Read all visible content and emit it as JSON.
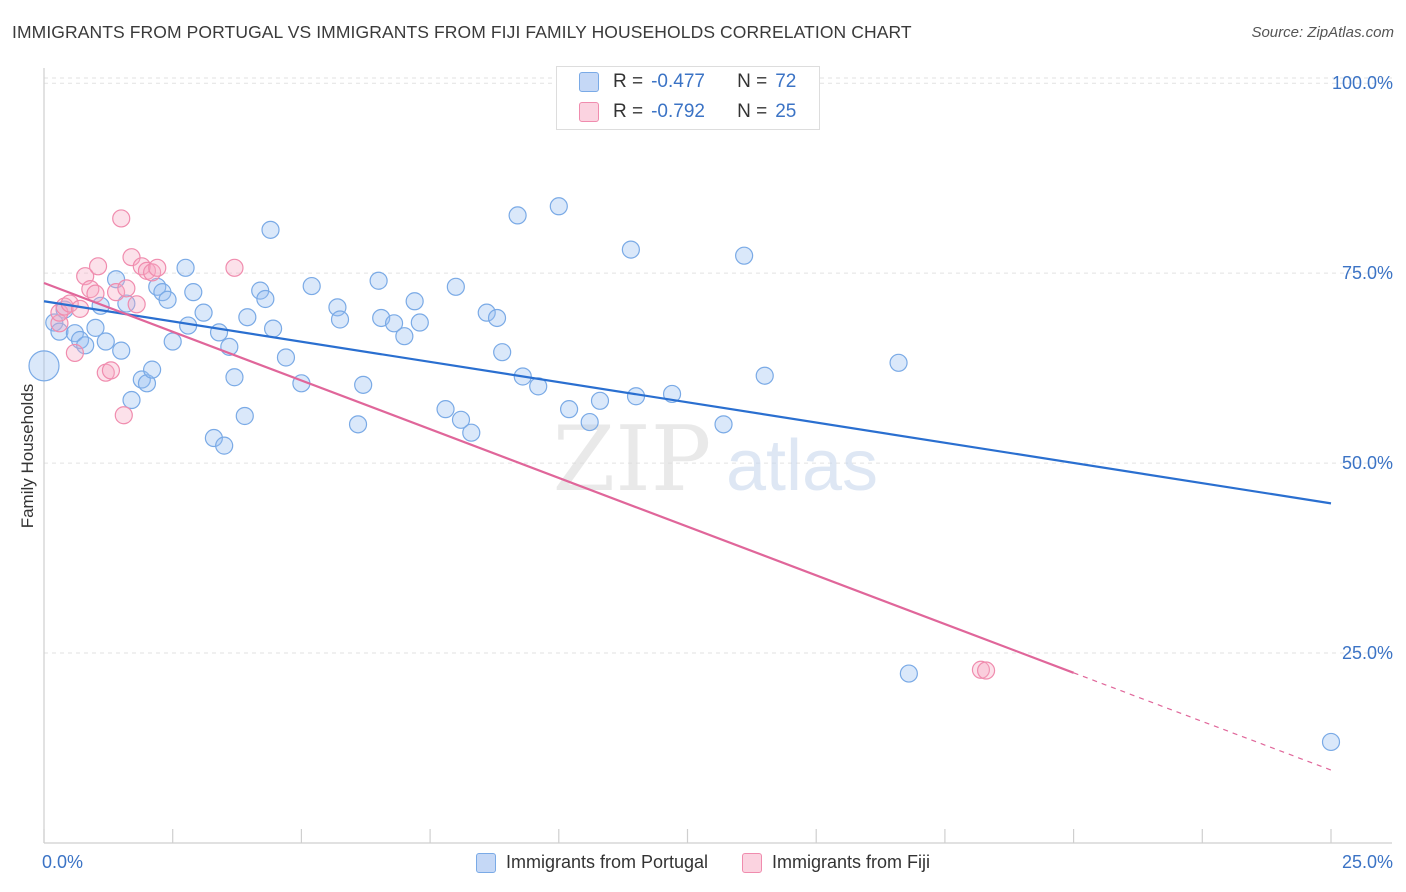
{
  "title": "IMMIGRANTS FROM PORTUGAL VS IMMIGRANTS FROM FIJI FAMILY HOUSEHOLDS CORRELATION CHART",
  "source": "Source: ZipAtlas.com",
  "watermark": {
    "zip": "ZIP",
    "atlas": "atlas"
  },
  "colors": {
    "portugal": "#7aaae6",
    "portugal_line": "#2a6fd0",
    "fiji": "#f08cae",
    "fiji_line": "#e0669a",
    "tick_text": "#3b73c5"
  },
  "legend_box": [
    {
      "r_label": "R =",
      "r_value": "-0.477",
      "n_label": "N =",
      "n_value": "72"
    },
    {
      "r_label": "R =",
      "r_value": "-0.792",
      "n_label": "N =",
      "n_value": "25"
    }
  ],
  "chart_data": {
    "type": "scatter",
    "title": "IMMIGRANTS FROM PORTUGAL VS IMMIGRANTS FROM FIJI FAMILY HOUSEHOLDS CORRELATION CHART",
    "xlabel": "",
    "ylabel": "Family Households",
    "xlim": [
      0,
      25
    ],
    "ylim": [
      0,
      102
    ],
    "x_tick_labels": [
      "0.0%",
      "25.0%"
    ],
    "y_ticks": [
      25,
      50,
      75,
      100
    ],
    "y_tick_labels": [
      "25.0%",
      "50.0%",
      "75.0%",
      "100.0%"
    ],
    "grid": true,
    "legend": "bottom-center",
    "series": [
      {
        "name": "Immigrants from Portugal",
        "r": -0.477,
        "n": 72,
        "trend": {
          "x": [
            0,
            25
          ],
          "y": [
            71.3,
            44.7
          ]
        },
        "points": [
          [
            0.0,
            62.8
          ],
          [
            0.2,
            68.5
          ],
          [
            0.3,
            67.3
          ],
          [
            0.4,
            70.2
          ],
          [
            0.6,
            67.1
          ],
          [
            0.7,
            66.2
          ],
          [
            0.8,
            65.5
          ],
          [
            1.0,
            67.8
          ],
          [
            1.1,
            70.7
          ],
          [
            1.2,
            66.0
          ],
          [
            1.4,
            74.2
          ],
          [
            1.5,
            64.8
          ],
          [
            1.6,
            71.0
          ],
          [
            1.7,
            58.3
          ],
          [
            1.9,
            61.0
          ],
          [
            2.0,
            60.5
          ],
          [
            2.1,
            62.3
          ],
          [
            2.2,
            73.2
          ],
          [
            2.3,
            72.5
          ],
          [
            2.4,
            71.5
          ],
          [
            2.5,
            66.0
          ],
          [
            2.75,
            75.7
          ],
          [
            2.8,
            68.1
          ],
          [
            2.9,
            72.5
          ],
          [
            3.1,
            69.8
          ],
          [
            3.3,
            53.3
          ],
          [
            3.4,
            67.2
          ],
          [
            3.5,
            52.3
          ],
          [
            3.6,
            65.3
          ],
          [
            3.7,
            61.3
          ],
          [
            3.9,
            56.2
          ],
          [
            3.95,
            69.2
          ],
          [
            4.2,
            72.7
          ],
          [
            4.3,
            71.6
          ],
          [
            4.4,
            80.7
          ],
          [
            4.45,
            67.7
          ],
          [
            4.7,
            63.9
          ],
          [
            5.0,
            60.5
          ],
          [
            5.2,
            73.3
          ],
          [
            5.7,
            70.5
          ],
          [
            5.75,
            68.9
          ],
          [
            6.1,
            55.1
          ],
          [
            6.2,
            60.3
          ],
          [
            6.5,
            74.0
          ],
          [
            6.55,
            69.1
          ],
          [
            6.8,
            68.4
          ],
          [
            7.0,
            66.7
          ],
          [
            7.2,
            71.3
          ],
          [
            7.3,
            68.5
          ],
          [
            7.8,
            57.1
          ],
          [
            8.0,
            73.2
          ],
          [
            8.1,
            55.7
          ],
          [
            8.3,
            54.0
          ],
          [
            8.6,
            69.8
          ],
          [
            8.8,
            69.1
          ],
          [
            8.9,
            64.6
          ],
          [
            9.2,
            82.6
          ],
          [
            9.3,
            61.4
          ],
          [
            9.6,
            60.1
          ],
          [
            10.0,
            83.8
          ],
          [
            10.2,
            57.1
          ],
          [
            10.6,
            55.4
          ],
          [
            10.8,
            58.2
          ],
          [
            11.4,
            78.1
          ],
          [
            11.5,
            58.8
          ],
          [
            12.2,
            59.1
          ],
          [
            13.2,
            55.1
          ],
          [
            13.6,
            77.3
          ],
          [
            14.0,
            61.5
          ],
          [
            16.6,
            63.2
          ],
          [
            16.8,
            22.3
          ],
          [
            25.0,
            13.3
          ]
        ]
      },
      {
        "name": "Immigrants from Fiji",
        "r": -0.792,
        "n": 25,
        "trend": {
          "x": [
            0,
            20.0
          ],
          "y": [
            73.7,
            22.4
          ]
        },
        "trend_dashed": {
          "x": [
            20.0,
            25
          ],
          "y": [
            22.4,
            9.6
          ]
        },
        "points": [
          [
            0.3,
            68.4
          ],
          [
            0.3,
            69.8
          ],
          [
            0.4,
            70.6
          ],
          [
            0.5,
            71.0
          ],
          [
            0.6,
            64.5
          ],
          [
            0.7,
            70.3
          ],
          [
            0.8,
            74.6
          ],
          [
            0.9,
            72.9
          ],
          [
            1.0,
            72.3
          ],
          [
            1.05,
            75.9
          ],
          [
            1.2,
            61.9
          ],
          [
            1.3,
            62.2
          ],
          [
            1.4,
            72.5
          ],
          [
            1.5,
            82.2
          ],
          [
            1.55,
            56.3
          ],
          [
            1.6,
            73.0
          ],
          [
            1.7,
            77.1
          ],
          [
            1.8,
            70.9
          ],
          [
            1.9,
            75.9
          ],
          [
            2.0,
            75.3
          ],
          [
            2.1,
            75.1
          ],
          [
            2.2,
            75.7
          ],
          [
            3.7,
            75.7
          ],
          [
            18.2,
            22.8
          ],
          [
            18.3,
            22.7
          ]
        ]
      }
    ]
  }
}
